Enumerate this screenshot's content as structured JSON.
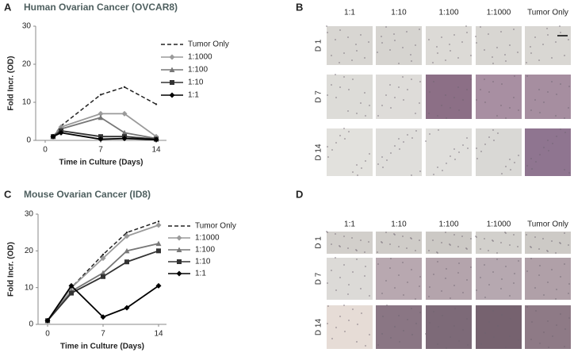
{
  "chart_data": [
    {
      "type": "line",
      "label": "A",
      "title": "Human Ovarian Cancer  (OVCAR8)",
      "x_label": "Time in Culture (Days)",
      "y_label": "Fold Incr. (OD)",
      "x": [
        1,
        2,
        7,
        10,
        14
      ],
      "xlim": [
        -1.2,
        15.3
      ],
      "xticks": [
        0,
        7,
        14
      ],
      "ylim": [
        0,
        30
      ],
      "yticks": [
        0,
        10,
        20,
        30
      ],
      "series": [
        {
          "name": "Tumor Only",
          "color": "#222222",
          "dash": true,
          "marker": "none",
          "values": [
            1,
            3.8,
            12,
            14,
            9.5
          ]
        },
        {
          "name": "1:1000",
          "color": "#9a9a9a",
          "dash": false,
          "marker": "diamond",
          "values": [
            1,
            3.5,
            7,
            7,
            1
          ]
        },
        {
          "name": "1:100",
          "color": "#777777",
          "dash": false,
          "marker": "triangle",
          "values": [
            1,
            3,
            6,
            2,
            0.5
          ]
        },
        {
          "name": "1:10",
          "color": "#333333",
          "dash": false,
          "marker": "square",
          "values": [
            1,
            2.5,
            1,
            1,
            0.3
          ]
        },
        {
          "name": "1:1",
          "color": "#000000",
          "dash": false,
          "marker": "diamond",
          "values": [
            1,
            2,
            0.3,
            0.5,
            0.2
          ]
        }
      ]
    },
    {
      "type": "line",
      "label": "C",
      "title": "Mouse Ovarian Cancer  (ID8)",
      "x_label": "Time in Culture (Days)",
      "y_label": "Fold Incr. (OD)",
      "x": [
        0,
        3,
        7,
        10,
        14
      ],
      "xlim": [
        -1.2,
        15
      ],
      "xticks": [
        0,
        7,
        14
      ],
      "ylim": [
        0,
        30
      ],
      "yticks": [
        0,
        10,
        20,
        30
      ],
      "series": [
        {
          "name": "Tumor Only",
          "color": "#222222",
          "dash": true,
          "marker": "none",
          "values": [
            1,
            10,
            19,
            25,
            28
          ]
        },
        {
          "name": "1:1000",
          "color": "#9a9a9a",
          "dash": false,
          "marker": "diamond",
          "values": [
            1,
            10,
            18,
            24,
            27
          ]
        },
        {
          "name": "1:100",
          "color": "#777777",
          "dash": false,
          "marker": "triangle",
          "values": [
            1,
            9,
            14,
            20,
            22
          ]
        },
        {
          "name": "1:10",
          "color": "#333333",
          "dash": false,
          "marker": "square",
          "values": [
            1,
            8.5,
            13,
            17,
            20
          ]
        },
        {
          "name": "1:1",
          "color": "#000000",
          "dash": false,
          "marker": "diamond",
          "values": [
            1,
            10.5,
            2,
            4.5,
            10.5
          ]
        }
      ]
    }
  ],
  "image_panels": [
    {
      "label": "B",
      "columns": [
        "1:1",
        "1:10",
        "1:100",
        "1:1000",
        "Tumor Only"
      ],
      "rows": [
        "D 1",
        "D 7",
        "D 14"
      ]
    },
    {
      "label": "D",
      "columns": [
        "1:1",
        "1:10",
        "1:100",
        "1:1000",
        "Tumor Only"
      ],
      "rows": [
        "D 1",
        "D 7",
        "D 14"
      ]
    }
  ]
}
